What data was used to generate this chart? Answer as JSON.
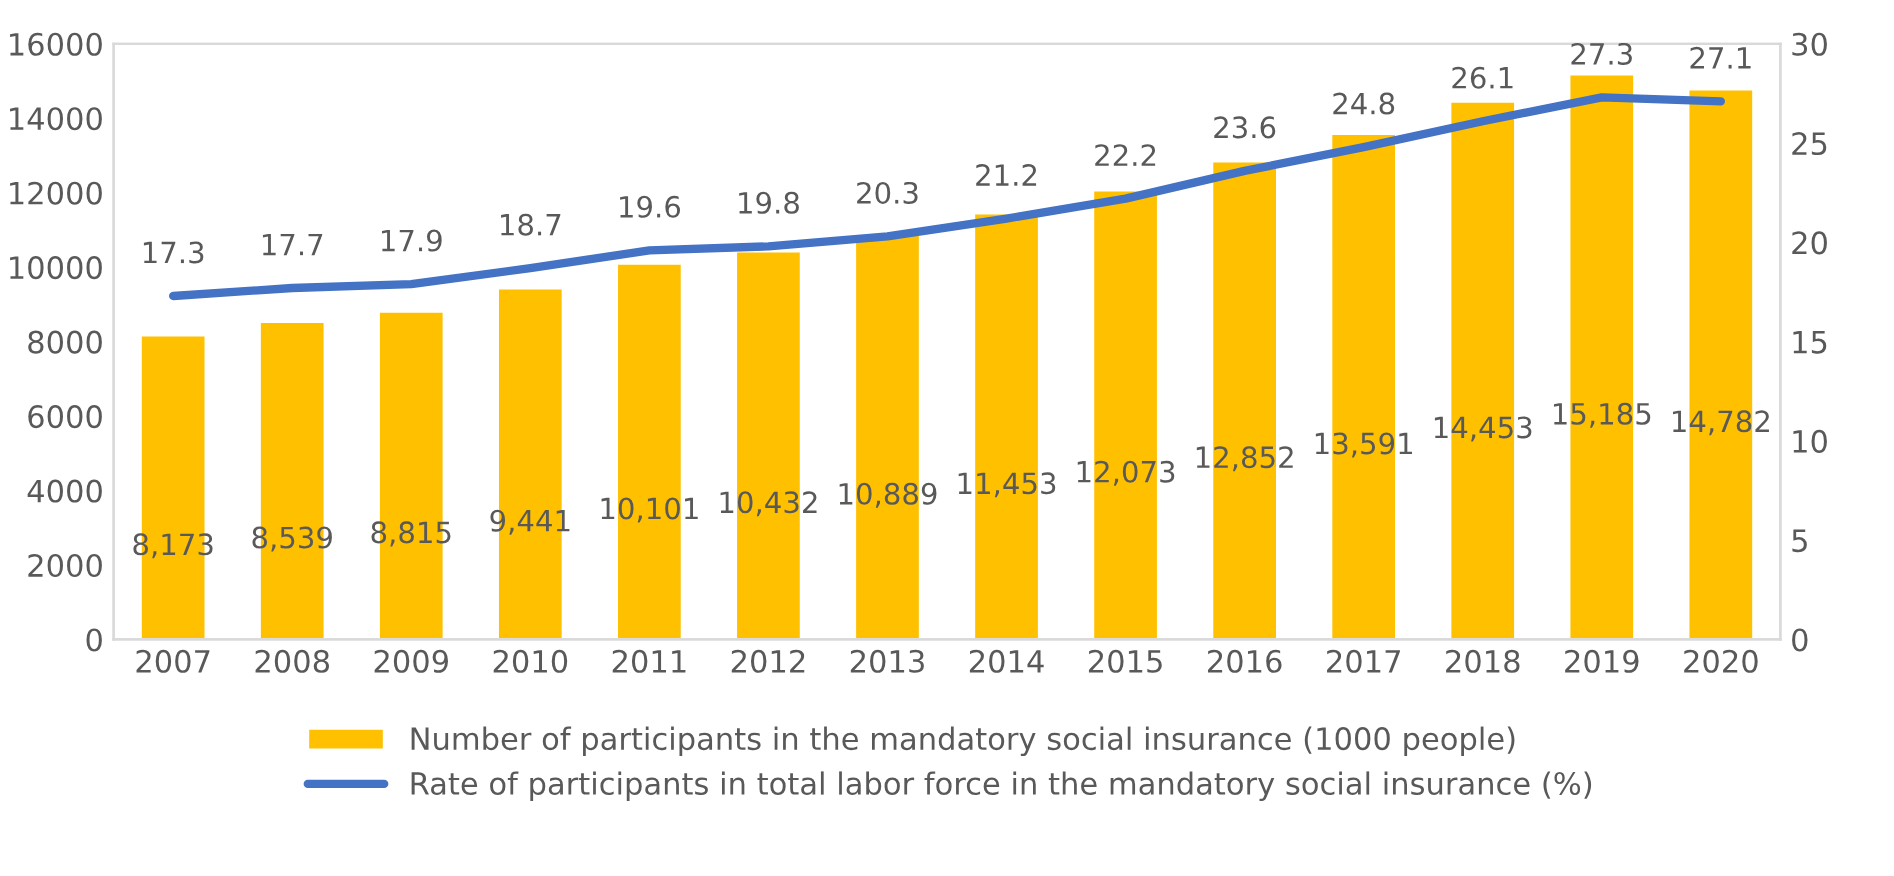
{
  "chart_data": {
    "type": "bar",
    "categories": [
      "2007",
      "2008",
      "2009",
      "2010",
      "2011",
      "2012",
      "2013",
      "2014",
      "2015",
      "2016",
      "2017",
      "2018",
      "2019",
      "2020"
    ],
    "series": [
      {
        "name": "Number of participants in the mandatory social insurance (1000 people)",
        "color": "#ffc000",
        "values": [
          8173,
          8539,
          8815,
          9441,
          10101,
          10432,
          10889,
          11453,
          12073,
          12852,
          13591,
          14453,
          15185,
          14782
        ],
        "value_labels": [
          "8,173",
          "8,539",
          "8,815",
          "9,441",
          "10,101",
          "10,432",
          "10,889",
          "11,453",
          "12,073",
          "12,852",
          "13,591",
          "14,453",
          "15,185",
          "14,782"
        ]
      },
      {
        "name": "Rate of participants in total labor force in the mandatory social insurance (%)",
        "type": "line",
        "axis": "y2",
        "color": "#4472c4",
        "values": [
          17.3,
          17.7,
          17.9,
          18.7,
          19.6,
          19.8,
          20.3,
          21.2,
          22.2,
          23.6,
          24.8,
          26.1,
          27.3,
          27.1
        ],
        "value_labels": [
          "17.3",
          "17.7",
          "17.9",
          "18.7",
          "19.6",
          "19.8",
          "20.3",
          "21.2",
          "22.2",
          "23.6",
          "24.8",
          "26.1",
          "27.3",
          "27.1"
        ]
      }
    ],
    "ylim": [
      0,
      16000
    ],
    "yticks": [
      0,
      2000,
      4000,
      6000,
      8000,
      10000,
      12000,
      14000,
      16000
    ],
    "y2lim": [
      0,
      30
    ],
    "y2ticks": [
      0,
      5,
      10,
      15,
      20,
      25,
      30
    ],
    "grid": false,
    "legend": "bottom",
    "marker": "none",
    "line_style": "solid"
  }
}
